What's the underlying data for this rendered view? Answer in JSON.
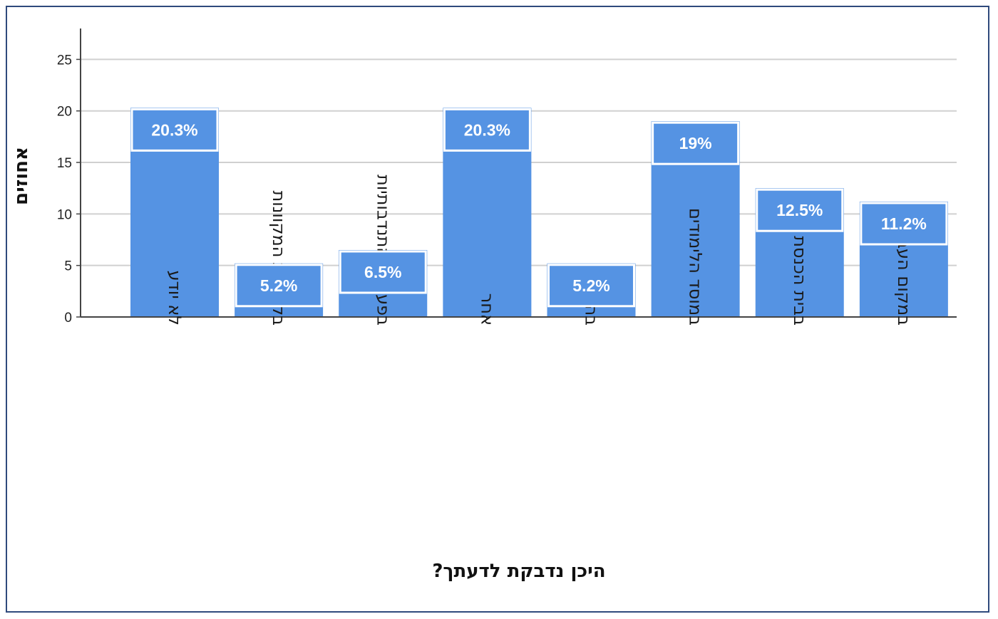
{
  "chart_data": {
    "type": "bar",
    "categories": [
      "לא יודע",
      "בקהילות המקוונות",
      "בפעולות התנדבותיות",
      "אחר",
      "בהפגנות",
      "במוסד הלימודים",
      "בבית הכנסת",
      "במקום העבודה"
    ],
    "values": [
      20.3,
      5.2,
      6.5,
      20.3,
      5.2,
      19,
      12.5,
      11.2
    ],
    "data_labels": [
      "20.3%",
      "5.2%",
      "6.5%",
      "20.3%",
      "5.2%",
      "19%",
      "12.5%",
      "11.2%"
    ],
    "xlabel": "היכן נדבקת לדעתך?",
    "ylabel": "אחוזים",
    "ylim": [
      0,
      28
    ],
    "yticks": [
      0,
      5,
      10,
      15,
      20,
      25
    ],
    "grid": true,
    "bar_color": "#5593e3",
    "gridline_color": "#d0d0d0",
    "axis_color": "#444444"
  }
}
